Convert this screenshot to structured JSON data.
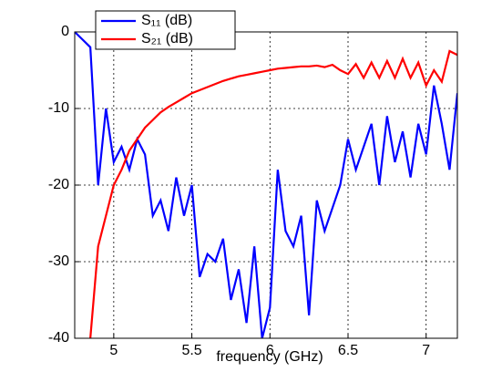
{
  "chart_data": {
    "type": "line",
    "xlabel": "frequency (GHz)",
    "x": [
      4.75,
      4.8,
      4.85,
      4.9,
      4.95,
      5.0,
      5.05,
      5.1,
      5.15,
      5.2,
      5.25,
      5.3,
      5.35,
      5.4,
      5.45,
      5.5,
      5.55,
      5.6,
      5.65,
      5.7,
      5.75,
      5.8,
      5.85,
      5.9,
      5.95,
      6.0,
      6.05,
      6.1,
      6.15,
      6.2,
      6.25,
      6.3,
      6.35,
      6.4,
      6.45,
      6.5,
      6.55,
      6.6,
      6.65,
      6.7,
      6.75,
      6.8,
      6.85,
      6.9,
      6.95,
      7.0,
      7.05,
      7.1,
      7.15,
      7.2
    ],
    "series": [
      {
        "name": "S₁₁ (dB)",
        "color": "#0000ff",
        "values": [
          0,
          -1,
          -2,
          -20,
          -10,
          -17,
          -15,
          -18,
          -14,
          -16,
          -24,
          -22,
          -26,
          -19,
          -24,
          -20,
          -32,
          -29,
          -30,
          -27,
          -35,
          -31,
          -38,
          -28,
          -40,
          -36,
          -18,
          -26,
          -28,
          -24,
          -37,
          -22,
          -26,
          -23,
          -20,
          -14,
          -18,
          -15,
          -12,
          -20,
          -11,
          -17,
          -13,
          -19,
          -12,
          -16,
          -7,
          -12,
          -18,
          -8
        ]
      },
      {
        "name": "S₂₁ (dB)",
        "color": "#ff0000",
        "values": [
          null,
          null,
          -40,
          -28,
          -24,
          -20,
          -18,
          -15.5,
          -14,
          -12.5,
          -11.5,
          -10.5,
          -9.8,
          -9.2,
          -8.6,
          -8,
          -7.6,
          -7.2,
          -6.8,
          -6.4,
          -6.1,
          -5.8,
          -5.6,
          -5.4,
          -5.2,
          -5,
          -4.8,
          -4.7,
          -4.6,
          -4.5,
          -4.5,
          -4.4,
          -4.6,
          -4.3,
          -5,
          -5.5,
          -4.2,
          -6,
          -4,
          -6,
          -3.8,
          -6,
          -3.5,
          -6,
          -4,
          -7,
          -5,
          -6.5,
          -2.5,
          -3
        ]
      }
    ],
    "xlim": [
      4.75,
      7.2
    ],
    "ylim": [
      -40,
      0
    ],
    "xticks": [
      5,
      5.5,
      6,
      6.5,
      7
    ],
    "yticks": [
      0,
      -10,
      -20,
      -30,
      -40
    ],
    "grid": true,
    "legend": "upper left"
  }
}
